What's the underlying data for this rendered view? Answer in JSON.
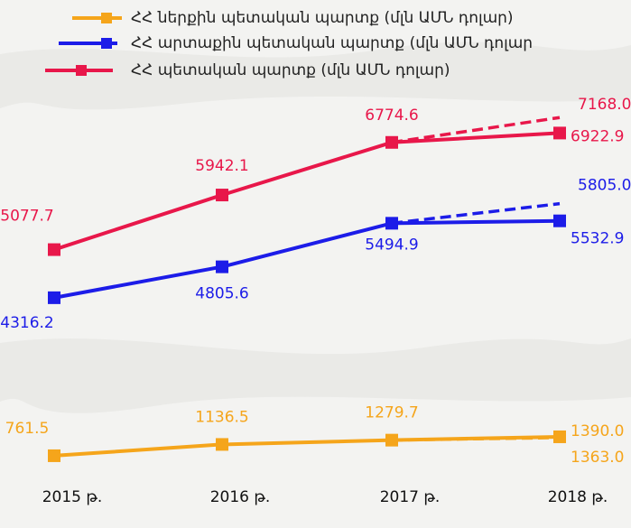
{
  "chart_data": {
    "type": "line",
    "categories": [
      "2015 թ.",
      "2016 թ.",
      "2017 թ.",
      "2018 թ."
    ],
    "ylim": [
      1500,
      7600
    ],
    "y2lim": [
      100,
      12900
    ],
    "series": [
      {
        "name": "ՀՀ ներքին պետական պարտք (մլն ԱՄՆ դոլար)",
        "color": "#f5a51b",
        "axis": "y2",
        "values": [
          761.5,
          1136.5,
          1279.7,
          1390.0
        ],
        "value_labels": [
          "761.5",
          "1136.5",
          "1279.7",
          "1390.0"
        ],
        "forecast_values": [
          null,
          null,
          null,
          1363.0
        ],
        "forecast_labels": [
          null,
          null,
          null,
          "1363.0"
        ]
      },
      {
        "name": "ՀՀ արտաքին պետական պարտք (մլն ԱՄՆ դոլար",
        "color": "#1c1ce8",
        "values": [
          4316.2,
          4805.6,
          5494.9,
          5532.9
        ],
        "value_labels": [
          "4316.2",
          "4805.6",
          "5494.9",
          "5532.9"
        ],
        "forecast_values": [
          null,
          null,
          null,
          5805.0
        ],
        "forecast_labels": [
          null,
          null,
          null,
          "5805.0"
        ]
      },
      {
        "name": "ՀՀ պետական պարտք (մլն ԱՄՆ դոլար)",
        "color": "#e8174a",
        "values": [
          5077.7,
          5942.1,
          6774.6,
          6922.9
        ],
        "value_labels": [
          "5077.7",
          "5942.1",
          "6774.6",
          "6922.9"
        ],
        "forecast_values": [
          null,
          null,
          null,
          7168.0
        ],
        "forecast_labels": [
          null,
          null,
          null,
          "7168.0"
        ]
      }
    ]
  }
}
